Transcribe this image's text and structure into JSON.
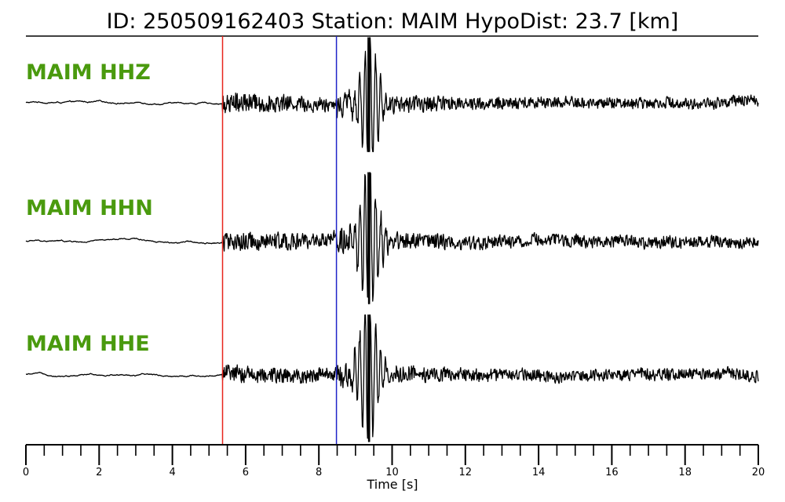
{
  "chart_data": {
    "type": "line",
    "title": "ID: 250509162403   Station: MAIM   HypoDist:    23.7 [km]",
    "xlabel": "Time [s]",
    "xlim": [
      0,
      20
    ],
    "x_ticks": [
      0,
      2,
      4,
      6,
      8,
      10,
      12,
      14,
      16,
      18,
      20
    ],
    "minor_tick_step": 0.5,
    "grid": false,
    "label_color": "#4a9a0e",
    "trace_color": "#000000",
    "p_pick": {
      "time": 5.37,
      "color": "#e8241c"
    },
    "s_pick": {
      "time": 8.48,
      "color": "#1f24c8"
    },
    "series": [
      {
        "name": "MAIM HHZ",
        "dominant_time": 9.37,
        "peak_up": 1.0,
        "peak_down": 0.75
      },
      {
        "name": "MAIM HHN",
        "dominant_time": 9.37,
        "peak_up": 1.0,
        "peak_down": 0.9
      },
      {
        "name": "MAIM HHE",
        "dominant_time": 9.37,
        "peak_up": 0.9,
        "peak_down": 1.0
      }
    ]
  }
}
